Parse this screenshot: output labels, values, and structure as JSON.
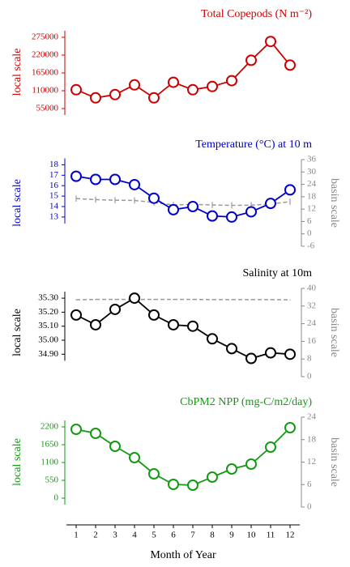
{
  "chart_data": [
    {
      "type": "line",
      "title": "Total Copepods (N m⁻²)",
      "ylabel": "local scale",
      "x": [
        1,
        2,
        3,
        4,
        5,
        6,
        7,
        8,
        9,
        10,
        11,
        12
      ],
      "ylim": [
        35000,
        300000
      ],
      "yticks": [
        55000,
        110000,
        165000,
        220000,
        275000
      ],
      "series": [
        {
          "color": "#cc0000",
          "values": [
            113000,
            88000,
            98000,
            128000,
            88000,
            136000,
            113000,
            123000,
            141000,
            204000,
            262000,
            189000
          ]
        }
      ]
    },
    {
      "type": "line",
      "title": "Temperature (°C) at 10 m",
      "ylabel": "local scale",
      "y2label": "basin scale",
      "x": [
        1,
        2,
        3,
        4,
        5,
        6,
        7,
        8,
        9,
        10,
        11,
        12
      ],
      "ylim": [
        10.2,
        18.5
      ],
      "yticks": [
        13,
        14,
        15,
        16,
        17,
        18
      ],
      "y2lim": [
        -6,
        36
      ],
      "y2ticks": [
        -6,
        0,
        6,
        12,
        18,
        24,
        30,
        36
      ],
      "series": [
        {
          "color": "#0000cc",
          "values": [
            16.9,
            16.6,
            16.6,
            16.1,
            14.8,
            13.7,
            14.0,
            13.1,
            13.0,
            13.5,
            14.3,
            15.6
          ]
        },
        {
          "color": "#999999",
          "axis": "y2",
          "dashed": true,
          "values": [
            17.1,
            16.6,
            16.3,
            16.2,
            15.2,
            14.0,
            14.3,
            14.0,
            13.8,
            13.9,
            14.5,
            15.6
          ],
          "errors": [
            1.5,
            1.5,
            1.5,
            1.5,
            1.5,
            1.5,
            1.5,
            1.5,
            1.5,
            1.5,
            1.5,
            1.5
          ]
        }
      ]
    },
    {
      "type": "line",
      "title": "Salinity at 10m",
      "ylabel": "local scale",
      "y2label": "basin scale",
      "x": [
        1,
        2,
        3,
        4,
        5,
        6,
        7,
        8,
        9,
        10,
        11,
        12
      ],
      "ylim": [
        34.74,
        35.37
      ],
      "yticks": [
        {
          "value": 34.9,
          "label": "34.90"
        },
        {
          "value": 35.0,
          "label": "35.00"
        },
        {
          "value": 35.1,
          "label": "35.10"
        },
        {
          "value": 35.2,
          "label": "35.20"
        },
        {
          "value": 35.3,
          "label": "35.30"
        }
      ],
      "y2lim": [
        0,
        40
      ],
      "y2ticks": [
        0,
        8,
        16,
        24,
        32,
        40
      ],
      "series": [
        {
          "color": "#000000",
          "values": [
            35.18,
            35.11,
            35.22,
            35.3,
            35.18,
            35.11,
            35.1,
            35.01,
            34.94,
            34.87,
            34.91,
            34.9
          ]
        },
        {
          "color": "#999999",
          "axis": "y2",
          "dashed": true,
          "values": [
            34.8,
            35.0,
            35.0,
            35.0,
            35.0,
            35.0,
            35.0,
            34.9,
            34.9,
            34.9,
            34.9,
            34.8
          ],
          "errors": [
            0.2,
            0.2,
            0.2,
            0.2,
            0.2,
            0.2,
            0.2,
            0.2,
            0.2,
            0.2,
            0.2,
            0.2
          ]
        }
      ]
    },
    {
      "type": "line",
      "title": "CbPM2 NPP (mg-C/m2/day)",
      "ylabel": "local scale",
      "y2label": "basin scale",
      "x": [
        1,
        2,
        3,
        4,
        5,
        6,
        7,
        8,
        9,
        10,
        11,
        12
      ],
      "xlim": [
        0.5,
        12.5
      ],
      "xticks": [
        1,
        2,
        3,
        4,
        5,
        6,
        7,
        8,
        9,
        10,
        11,
        12
      ],
      "xlabel": "Month of Year",
      "ylim": [
        -275,
        2500
      ],
      "yticks": [
        0,
        550,
        1100,
        1650,
        2200
      ],
      "y2lim": [
        0,
        24
      ],
      "y2ticks": [
        0,
        6,
        12,
        18,
        24
      ],
      "series": [
        {
          "color": "#139a13",
          "values": [
            2125,
            2000,
            1600,
            1250,
            750,
            425,
            400,
            650,
            900,
            1050,
            1575,
            2175
          ]
        }
      ]
    }
  ]
}
